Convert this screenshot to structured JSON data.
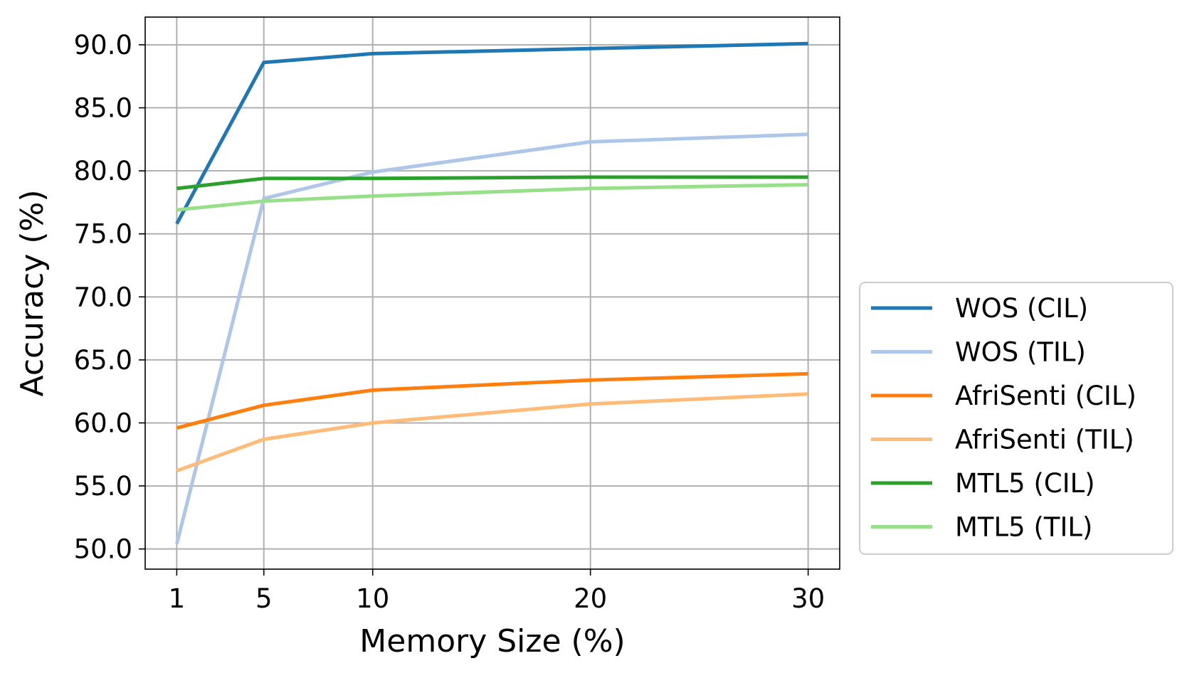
{
  "chart_data": {
    "type": "line",
    "xlabel": "Memory Size (%)",
    "ylabel": "Accuracy (%)",
    "x": [
      1,
      5,
      10,
      20,
      30
    ],
    "x_ticks": [
      "1",
      "5",
      "10",
      "20",
      "30"
    ],
    "y_ticks": [
      "50.0",
      "55.0",
      "60.0",
      "65.0",
      "70.0",
      "75.0",
      "80.0",
      "85.0",
      "90.0"
    ],
    "y_tick_values": [
      50,
      55,
      60,
      65,
      70,
      75,
      80,
      85,
      90
    ],
    "xlim": [
      -0.45,
      31.45
    ],
    "ylim": [
      48.4,
      92.2
    ],
    "grid": true,
    "legend_position": "outside-right",
    "series": [
      {
        "name": "WOS (CIL)",
        "color": "#1f77b4",
        "values": [
          75.8,
          88.6,
          89.3,
          89.7,
          90.1
        ]
      },
      {
        "name": "WOS (TIL)",
        "color": "#aec7e8",
        "values": [
          50.4,
          77.8,
          79.9,
          82.3,
          82.9
        ]
      },
      {
        "name": "AfriSenti (CIL)",
        "color": "#ff7f0e",
        "values": [
          59.6,
          61.4,
          62.6,
          63.4,
          63.9
        ]
      },
      {
        "name": "AfriSenti (TIL)",
        "color": "#ffbb78",
        "values": [
          56.2,
          58.7,
          60.0,
          61.5,
          62.3
        ]
      },
      {
        "name": "MTL5 (CIL)",
        "color": "#2ca02c",
        "values": [
          78.6,
          79.4,
          79.4,
          79.5,
          79.5
        ]
      },
      {
        "name": "MTL5 (TIL)",
        "color": "#98df8a",
        "values": [
          76.9,
          77.6,
          78.0,
          78.6,
          78.9
        ]
      }
    ]
  }
}
